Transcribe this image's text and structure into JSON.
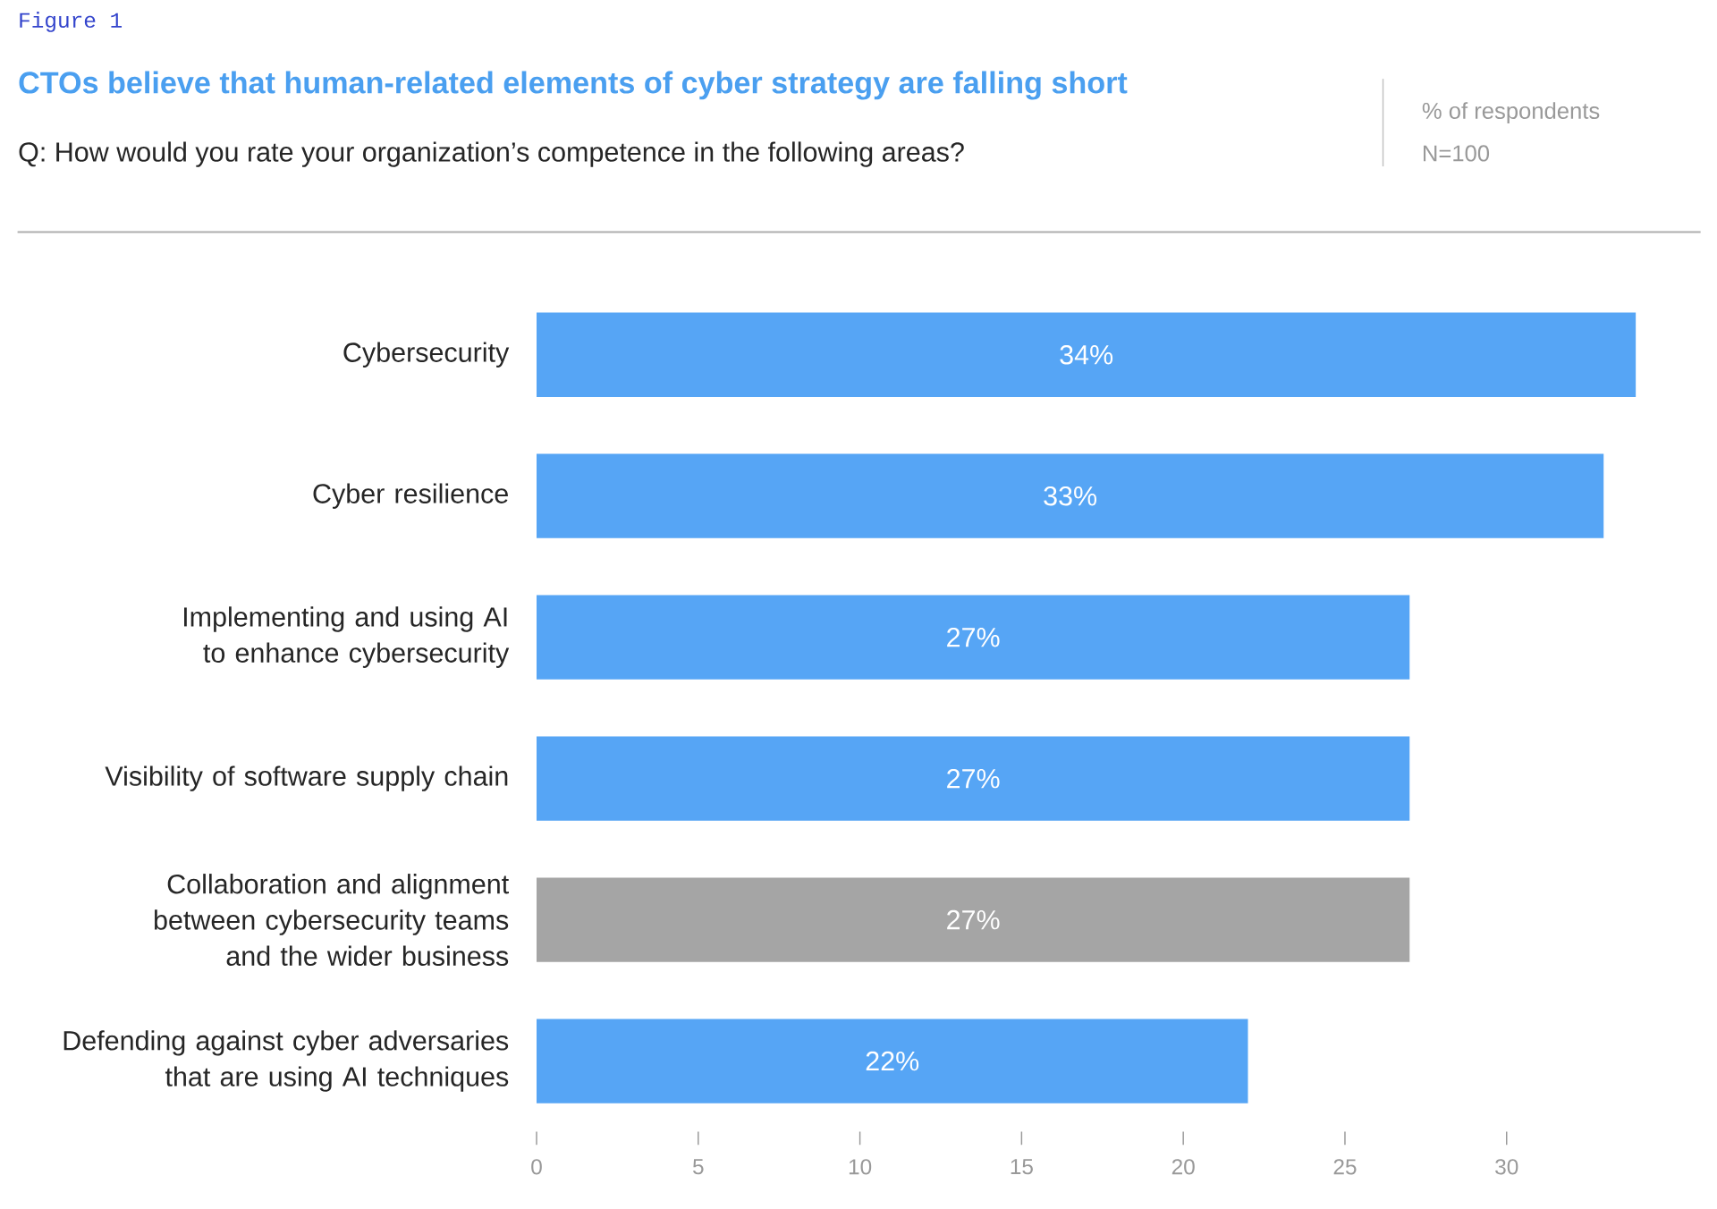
{
  "chart_data": {
    "type": "bar",
    "orientation": "horizontal",
    "title": "CTOs believe that human-related elements of cyber strategy are falling short",
    "subtitle": "Q:  How would you rate your organization’s competence in the following areas?",
    "annotations": [
      "Figure 1",
      "% of respondents",
      "N=100"
    ],
    "categories": [
      "Cybersecurity",
      "Cyber resilience",
      "Implementing and using AI to enhance cybersecurity",
      "Visibility of software supply chain",
      "Collaboration and alignment between cybersecurity teams and the wider business",
      "Defending against cyber adversaries that are using AI techniques"
    ],
    "values": [
      34,
      33,
      27,
      27,
      27,
      22
    ],
    "colors": [
      "#56a5f5",
      "#56a5f5",
      "#56a5f5",
      "#56a5f5",
      "#a5a5a5",
      "#56a5f5"
    ],
    "value_labels": [
      "34%",
      "33%",
      "27%",
      "27%",
      "27%",
      "22%"
    ],
    "xlim": [
      0,
      34
    ],
    "xticks": [
      0,
      5,
      10,
      15,
      20,
      25,
      30
    ]
  }
}
